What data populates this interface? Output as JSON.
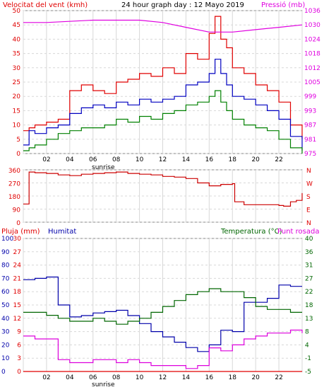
{
  "chart_data": [
    {
      "type": "line",
      "title": "24 hour graph day : 12 Mayo 2019",
      "ylabel_left": "Velocitat del vent (kmh)",
      "ylabel_right": "Pressió (mb)",
      "x_ticks": [
        "02",
        "04",
        "06",
        "08",
        "10",
        "12",
        "14",
        "16",
        "18",
        "20",
        "22"
      ],
      "x_annotation": "sunrise",
      "ylim_left": [
        0,
        50
      ],
      "yticks_left": [
        "0",
        "5",
        "10",
        "15",
        "20",
        "25",
        "30",
        "35",
        "40",
        "45",
        "50"
      ],
      "ylim_right": [
        975,
        1035
      ],
      "yticks_right": [
        "975",
        "981",
        "987",
        "993",
        "999",
        "1005",
        "1012",
        "1018",
        "1024",
        "1030",
        "1036"
      ],
      "grid": true,
      "series": [
        {
          "color": "#e00000",
          "axis": "left",
          "x": [
            0,
            0.5,
            1,
            2,
            3,
            4,
            5,
            6,
            7,
            8,
            9,
            10,
            11,
            12,
            13,
            14,
            15,
            16,
            16.5,
            17,
            17.5,
            18,
            19,
            20,
            21,
            22,
            23,
            24
          ],
          "values": [
            8,
            9,
            10,
            11,
            12,
            22,
            24,
            22,
            21,
            25,
            26,
            28,
            27,
            30,
            28,
            35,
            33,
            42,
            48,
            40,
            37,
            30,
            28,
            24,
            22,
            18,
            10,
            5
          ]
        },
        {
          "color": "#0000c0",
          "axis": "left",
          "x": [
            0,
            0.5,
            1,
            2,
            3,
            4,
            5,
            6,
            7,
            8,
            9,
            10,
            11,
            12,
            13,
            14,
            15,
            16,
            16.5,
            17,
            17.5,
            18,
            19,
            20,
            21,
            22,
            23,
            24
          ],
          "values": [
            3,
            8,
            7,
            9,
            10,
            14,
            16,
            17,
            16,
            18,
            17,
            19,
            18,
            19,
            20,
            24,
            25,
            28,
            33,
            28,
            24,
            20,
            19,
            17,
            15,
            12,
            6,
            1
          ]
        },
        {
          "color": "#008000",
          "axis": "left",
          "x": [
            0,
            0.5,
            1,
            2,
            3,
            4,
            5,
            6,
            7,
            8,
            9,
            10,
            11,
            12,
            13,
            14,
            15,
            16,
            16.5,
            17,
            17.5,
            18,
            19,
            20,
            21,
            22,
            23,
            24
          ],
          "values": [
            1,
            2,
            3,
            5,
            7,
            8,
            9,
            9,
            10,
            12,
            11,
            13,
            12,
            14,
            15,
            17,
            18,
            20,
            22,
            18,
            15,
            12,
            10,
            9,
            8,
            5,
            2,
            0
          ]
        },
        {
          "color": "#e000e0",
          "axis": "right",
          "x": [
            0,
            2,
            6,
            10,
            12,
            14,
            16,
            18,
            20,
            22,
            24
          ],
          "values": [
            1030,
            1030,
            1031,
            1031,
            1030,
            1028,
            1026,
            1026,
            1027,
            1028,
            1029
          ]
        }
      ]
    },
    {
      "type": "line",
      "ylabels": [
        "360",
        "270",
        "180",
        "90",
        "0"
      ],
      "ylabels_right": [
        "N",
        "W",
        "S",
        "E",
        "N"
      ],
      "ylim": [
        0,
        360
      ],
      "series": [
        {
          "color": "#cc0000",
          "x": [
            0,
            0.4,
            0.5,
            1,
            2,
            3,
            4,
            5,
            6,
            7,
            8,
            9,
            10,
            11,
            12,
            13,
            14,
            15,
            16,
            17,
            18,
            18.2,
            19,
            20,
            21,
            22,
            22.4,
            23,
            23.5,
            24
          ],
          "values": [
            125,
            125,
            345,
            340,
            335,
            325,
            320,
            330,
            335,
            340,
            345,
            335,
            330,
            325,
            315,
            310,
            300,
            270,
            250,
            260,
            265,
            140,
            120,
            120,
            120,
            115,
            110,
            140,
            150,
            200
          ]
        }
      ]
    },
    {
      "type": "line",
      "ylabel_left_1": "Pluja (mm)",
      "ylabel_left_2": "Humitat",
      "ylabel_right_1": "Temperatura (°C)",
      "ylabel_right_2": "Punt rosada",
      "x_ticks": [
        "02",
        "04",
        "06",
        "08",
        "10",
        "12",
        "14",
        "16",
        "18",
        "20",
        "22"
      ],
      "x_annotation": "sunrise",
      "yticks_humidity": [
        "0",
        "10",
        "20",
        "30",
        "40",
        "50",
        "60",
        "70",
        "80",
        "90",
        "100"
      ],
      "yticks_rain": [
        "0",
        "3",
        "6",
        "9",
        "12",
        "15",
        "18",
        "21",
        "24",
        "27",
        "30"
      ],
      "yticks_temp": [
        "-5",
        "-1",
        "4",
        "8",
        "13",
        "18",
        "22",
        "27",
        "31",
        "36",
        "40"
      ],
      "ylim_humidity": [
        0,
        100
      ],
      "ylim_temp": [
        -5,
        40
      ],
      "series": [
        {
          "color": "#0000aa",
          "axis": "humidity",
          "x": [
            0,
            1,
            2,
            3,
            4,
            5,
            6,
            7,
            8,
            9,
            10,
            11,
            12,
            13,
            14,
            15,
            16,
            17,
            18,
            19,
            20,
            21,
            22,
            23,
            24
          ],
          "values": [
            69,
            70,
            71,
            50,
            41,
            42,
            44,
            45,
            46,
            42,
            36,
            30,
            26,
            22,
            18,
            15,
            20,
            31,
            30,
            52,
            52,
            55,
            65,
            64,
            64
          ]
        },
        {
          "color": "#006600",
          "axis": "temp",
          "x": [
            0,
            1,
            2,
            3,
            4,
            5,
            6,
            7,
            8,
            9,
            10,
            11,
            12,
            13,
            14,
            15,
            16,
            17,
            18,
            19,
            20,
            21,
            22,
            23,
            24
          ],
          "values": [
            15,
            15,
            14,
            13,
            12,
            12,
            13,
            12,
            11,
            12,
            13,
            15,
            17,
            19,
            21,
            22,
            23,
            22,
            22,
            20,
            17,
            16,
            16,
            15,
            15
          ]
        },
        {
          "color": "#dd00dd",
          "axis": "temp",
          "x": [
            0,
            1,
            2,
            3,
            4,
            5,
            6,
            7,
            8,
            9,
            10,
            11,
            12,
            13,
            14,
            15,
            16,
            17,
            18,
            19,
            20,
            21,
            22,
            23,
            24
          ],
          "values": [
            7,
            6,
            6,
            -1,
            -2,
            -2,
            -1,
            -1,
            -2,
            -1,
            -2,
            -3,
            -3,
            -3,
            -4,
            -3,
            3,
            2,
            4,
            6,
            7,
            8,
            8,
            9,
            8
          ]
        },
        {
          "color": "#e00000",
          "axis": "rain",
          "x": [
            0,
            24
          ],
          "values": [
            0,
            0
          ]
        }
      ]
    }
  ]
}
